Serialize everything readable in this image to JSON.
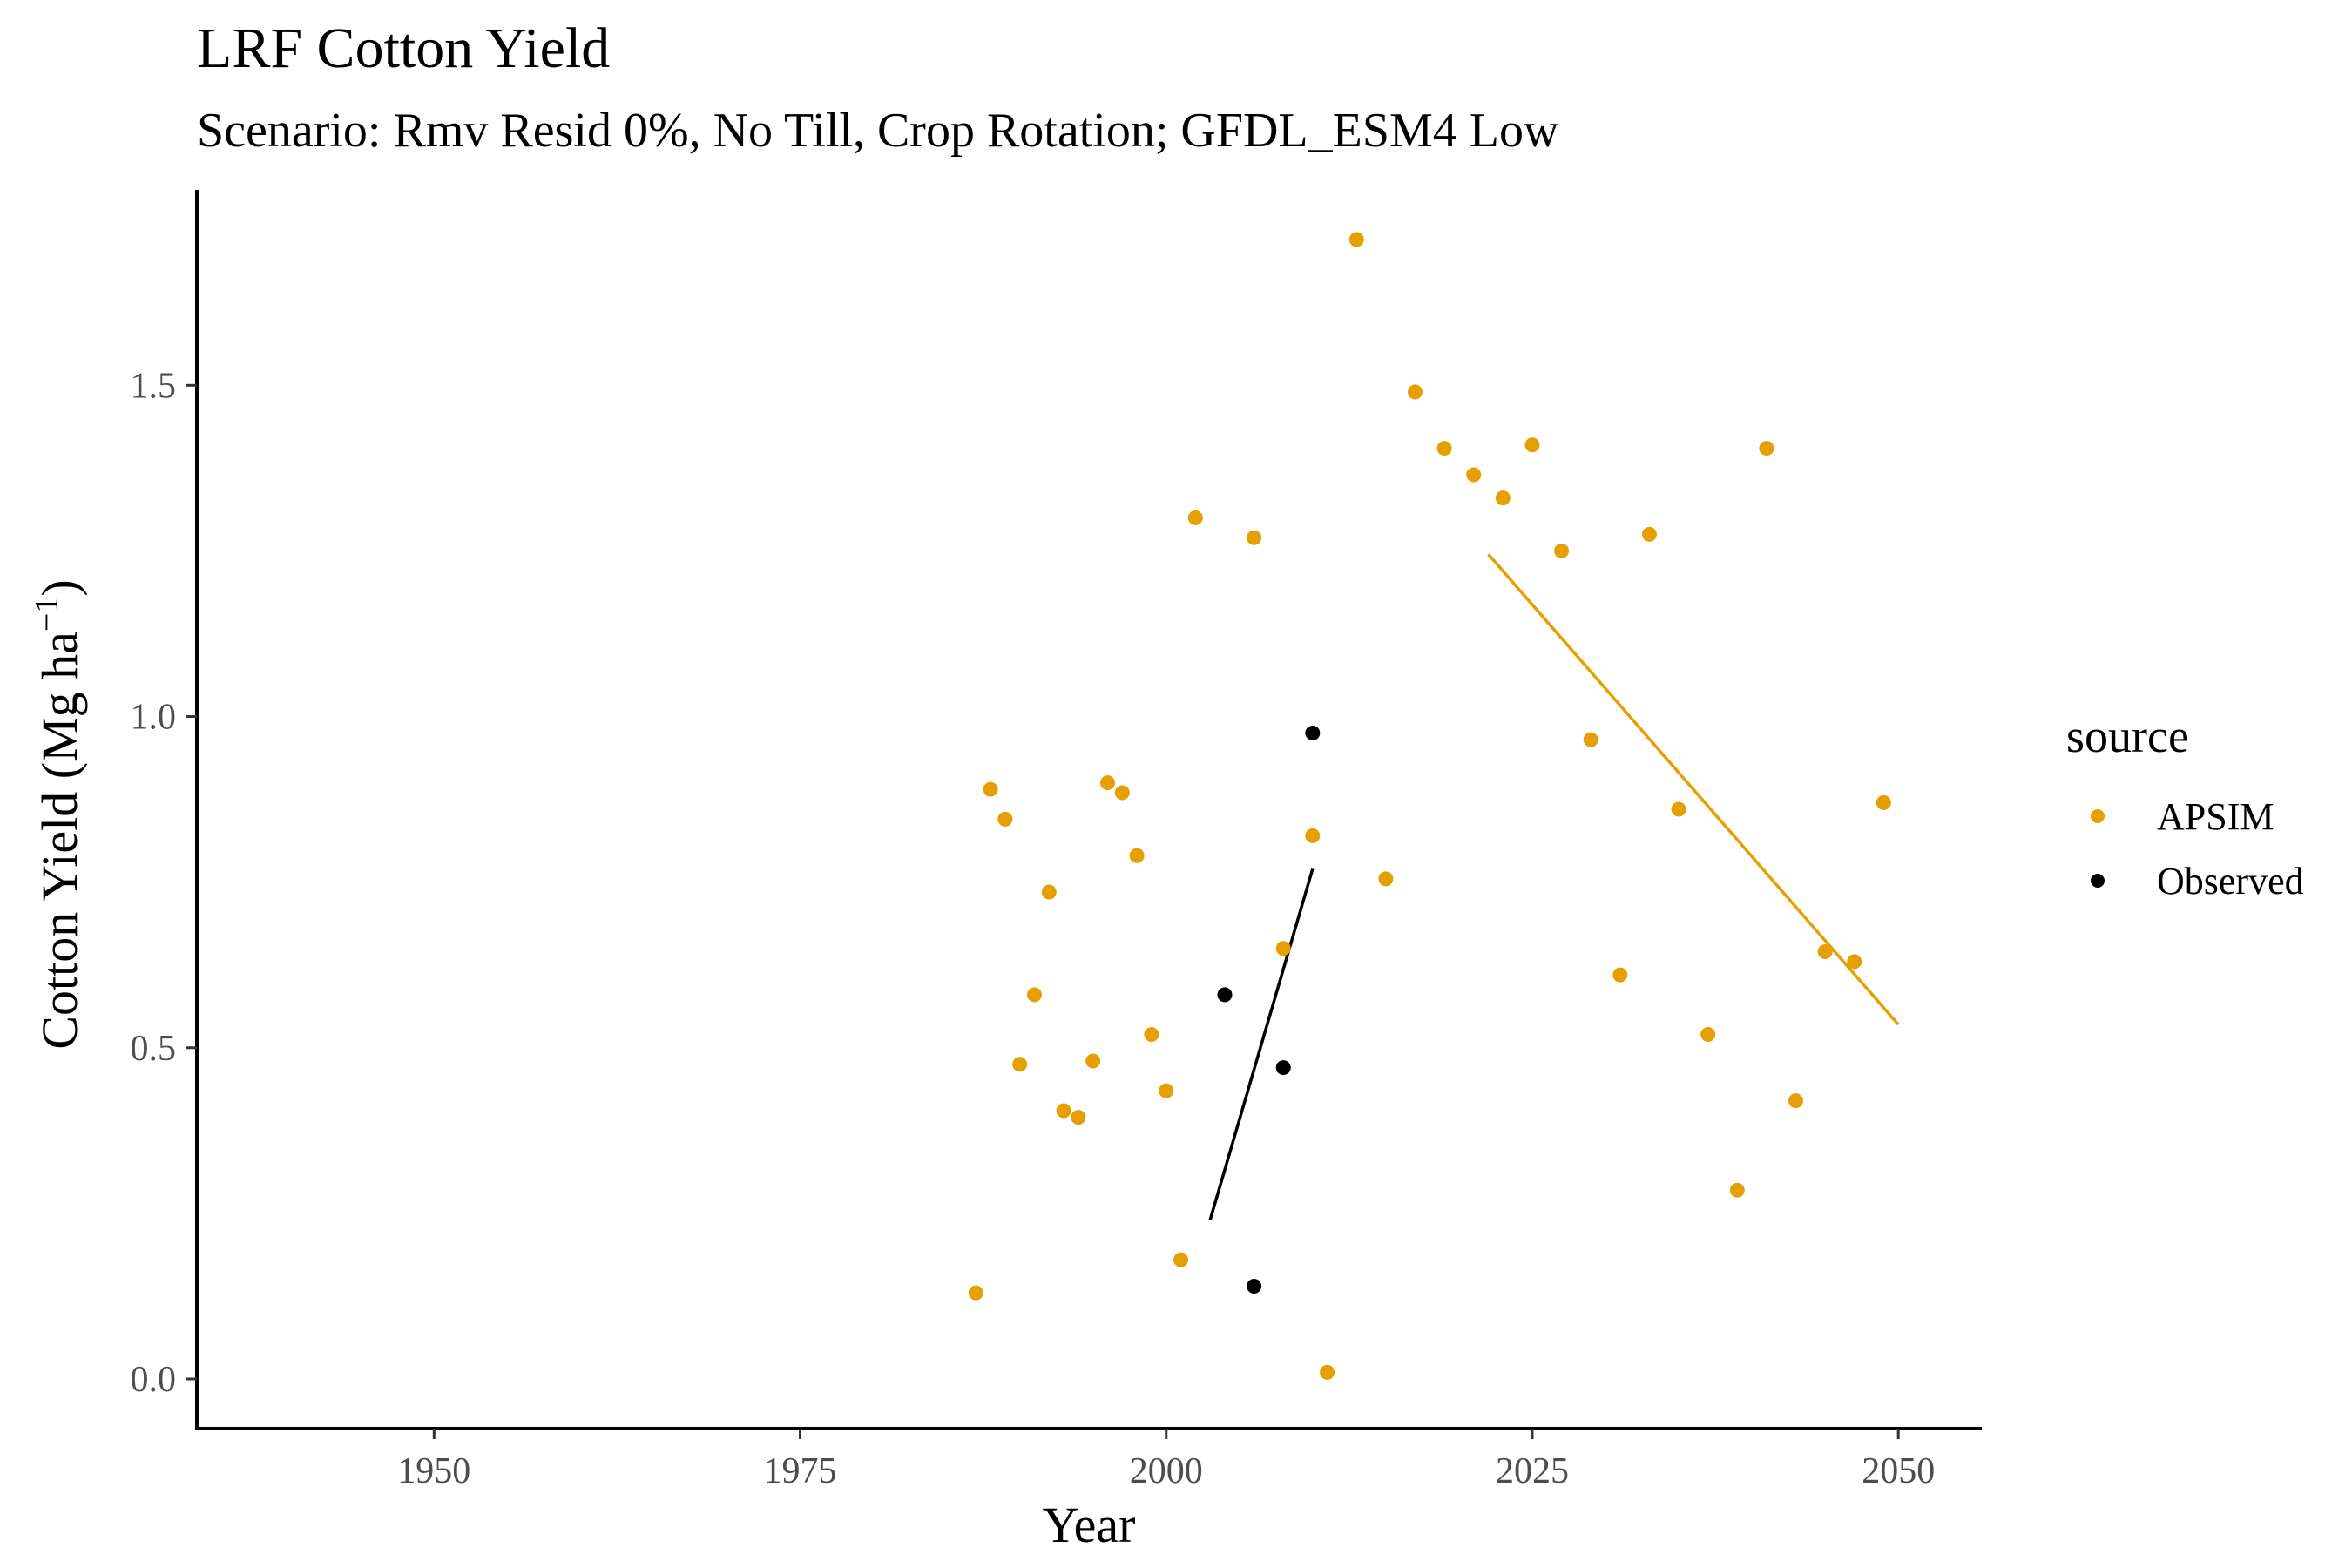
{
  "chart_data": {
    "type": "scatter",
    "title": "LRF Cotton Yield",
    "subtitle": "Scenario: Rmv Resid 0%, No Till, Crop Rotation; GFDL_ESM4 Low",
    "xlabel": "Year",
    "ylabel": "Cotton Yield (Mg ha",
    "ylabel_sup": "−1",
    "ylabel_close": ")",
    "xlim": [
      1933.8,
      2055.7
    ],
    "ylim": [
      -0.075,
      1.795
    ],
    "x_ticks": [
      1950,
      1975,
      2000,
      2025,
      2050
    ],
    "y_ticks": [
      0.0,
      0.5,
      1.0,
      1.5
    ],
    "x_tick_labels": [
      "1950",
      "1975",
      "2000",
      "2025",
      "2050"
    ],
    "y_tick_labels": [
      "0.0",
      "0.5",
      "1.0",
      "1.5"
    ],
    "grid": false,
    "legend": {
      "title": "source",
      "position": "right",
      "entries": [
        "APSIM",
        "Observed"
      ]
    },
    "series": [
      {
        "name": "APSIM",
        "color": "#E69F00",
        "points": [
          [
            1987,
            0.13
          ],
          [
            1988,
            0.89
          ],
          [
            1989,
            0.845
          ],
          [
            1990,
            0.475
          ],
          [
            1991,
            0.58
          ],
          [
            1992,
            0.735
          ],
          [
            1993,
            0.405
          ],
          [
            1994,
            0.395
          ],
          [
            1995,
            0.48
          ],
          [
            1996,
            0.9
          ],
          [
            1997,
            0.885
          ],
          [
            1998,
            0.79
          ],
          [
            1999,
            0.52
          ],
          [
            2000,
            0.435
          ],
          [
            2001,
            0.18
          ],
          [
            2002,
            1.3
          ],
          [
            2004,
            0.58
          ],
          [
            2006,
            1.27
          ],
          [
            2008,
            0.65
          ],
          [
            2010,
            0.82
          ],
          [
            2011,
            0.01
          ],
          [
            2013,
            1.72
          ],
          [
            2015,
            0.755
          ],
          [
            2017,
            1.49
          ],
          [
            2019,
            1.405
          ],
          [
            2021,
            1.365
          ],
          [
            2023,
            1.33
          ],
          [
            2025,
            1.41
          ],
          [
            2027,
            1.25
          ],
          [
            2029,
            0.965
          ],
          [
            2031,
            0.61
          ],
          [
            2033,
            1.275
          ],
          [
            2035,
            0.86
          ],
          [
            2037,
            0.52
          ],
          [
            2039,
            0.285
          ],
          [
            2041,
            1.405
          ],
          [
            2043,
            0.42
          ],
          [
            2045,
            0.645
          ],
          [
            2047,
            0.63
          ],
          [
            2049,
            0.87
          ]
        ],
        "trend": [
          [
            2022,
            1.245
          ],
          [
            2050,
            0.535
          ]
        ]
      },
      {
        "name": "Observed",
        "color": "#000000",
        "points": [
          [
            2004,
            0.58
          ],
          [
            2006,
            0.14
          ],
          [
            2008,
            0.47
          ],
          [
            2010,
            0.975
          ]
        ],
        "trend": [
          [
            2003,
            0.24
          ],
          [
            2010,
            0.77
          ]
        ]
      }
    ]
  }
}
